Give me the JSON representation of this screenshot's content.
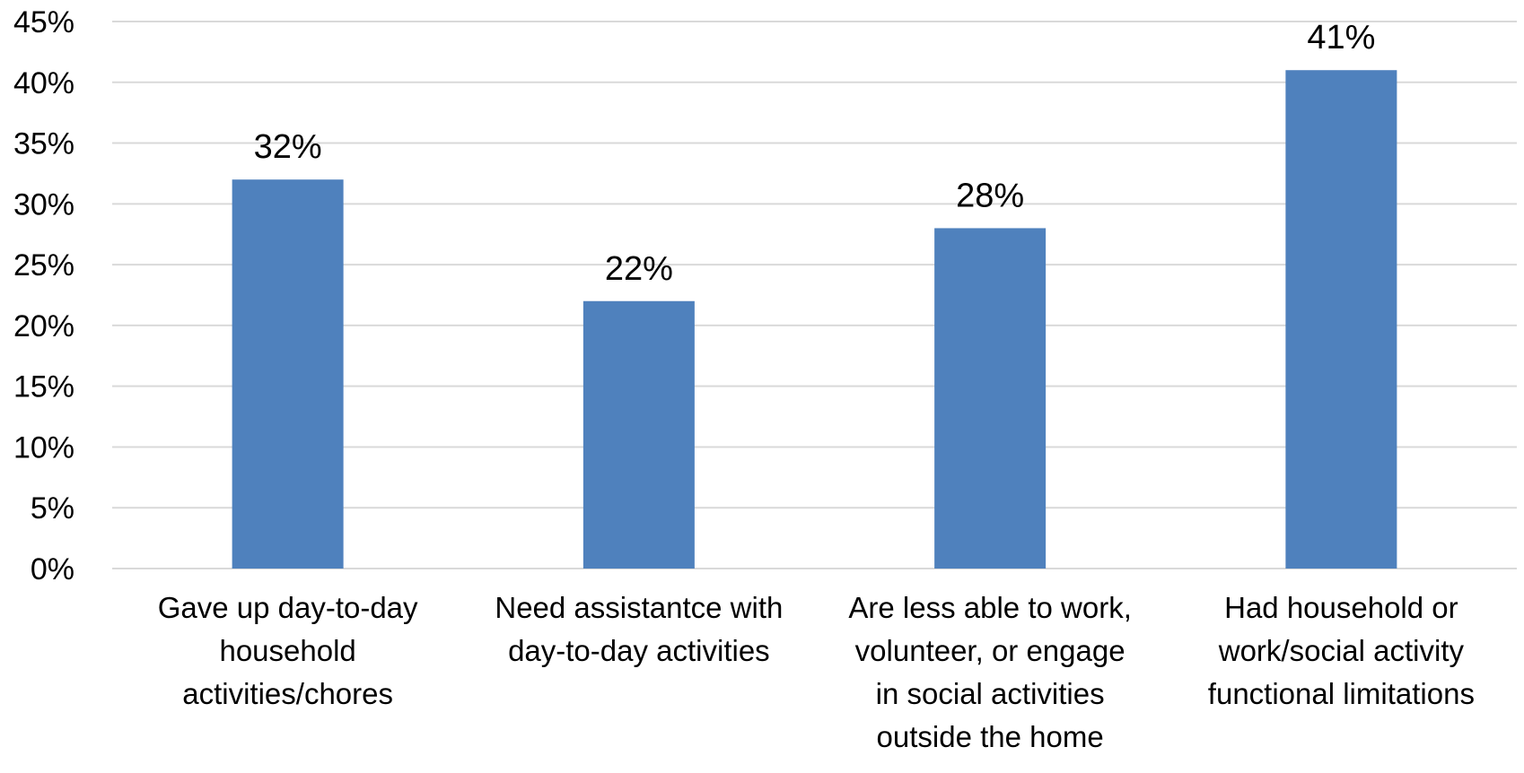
{
  "chart_data": {
    "type": "bar",
    "title": "",
    "xlabel": "",
    "ylabel": "",
    "ylim": [
      0,
      45
    ],
    "y_tick_step": 5,
    "y_tick_format": "percent",
    "grid": true,
    "legend": "none",
    "bar_color": "#4f81bd",
    "categories": [
      [
        "Gave up day-to-day",
        "household",
        "activities/chores"
      ],
      [
        "Need assistantce with",
        "day-to-day activities"
      ],
      [
        "Are less able to work,",
        "volunteer, or engage",
        "in social activities",
        "outside the home"
      ],
      [
        "Had household or",
        "work/social activity",
        "functional limitations"
      ]
    ],
    "values": [
      32,
      22,
      28,
      41
    ],
    "data_labels": [
      "32%",
      "22%",
      "28%",
      "41%"
    ]
  }
}
